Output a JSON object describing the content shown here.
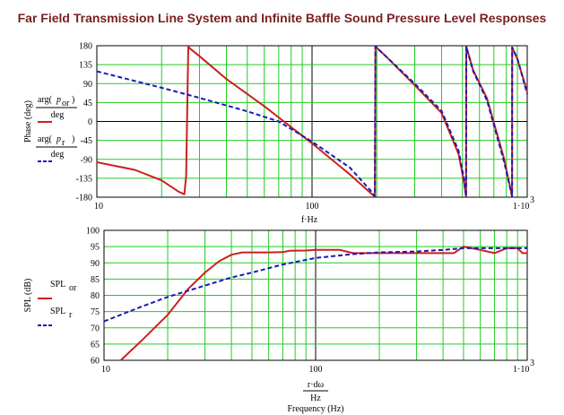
{
  "title": "Far Field Transmission Line System and Infinite Baffle Sound Pressure Level Responses",
  "colors": {
    "solid": "#cc1f1f",
    "dashed": "#1a1ab8",
    "grid": "#22cc22",
    "frame": "#000000",
    "title": "#7a1f1f"
  },
  "chart_data": [
    {
      "id": "phase",
      "type": "line",
      "x_scale": "log",
      "xlim": [
        10,
        1000
      ],
      "ylim": [
        -180,
        180
      ],
      "ylabel": "Phase (deg)",
      "xlabel": "f·Hz",
      "x_tick_labels": [
        "10",
        "100",
        "1·10"
      ],
      "x_tick_exponent": "3",
      "y_ticks": [
        180,
        135,
        90,
        45,
        0,
        -45,
        -90,
        -135,
        -180
      ],
      "legend": [
        {
          "style": "solid",
          "expr": "arg(p_or)",
          "sub": "or",
          "den": "deg"
        },
        {
          "style": "dashed",
          "expr": "arg(p_r)",
          "sub": "r",
          "den": "deg"
        }
      ],
      "series": [
        {
          "style": "solid",
          "points": [
            [
              10,
              -97
            ],
            [
              15,
              -115
            ],
            [
              20,
              -140
            ],
            [
              24,
              -167
            ],
            [
              25.5,
              -173
            ],
            [
              26,
              -130
            ],
            [
              26.6,
              178
            ],
            [
              27,
              174
            ],
            [
              30,
              155
            ],
            [
              40,
              101
            ],
            [
              60,
              36
            ],
            [
              100,
              -52
            ],
            [
              150,
              -126
            ],
            [
              190,
              -173
            ],
            [
              196,
              -179
            ],
            [
              197,
              178
            ],
            [
              220,
              155
            ],
            [
              300,
              86
            ],
            [
              400,
              20
            ],
            [
              480,
              -78
            ],
            [
              510,
              -148
            ],
            [
              520,
              -180
            ],
            [
              521,
              178
            ],
            [
              560,
              122
            ],
            [
              650,
              55
            ],
            [
              780,
              -88
            ],
            [
              850,
              -178
            ],
            [
              851,
              176
            ],
            [
              900,
              148
            ],
            [
              1000,
              70
            ]
          ]
        },
        {
          "style": "dashed",
          "points": [
            [
              10,
              119
            ],
            [
              20,
              80
            ],
            [
              30,
              56
            ],
            [
              50,
              24
            ],
            [
              70,
              0
            ],
            [
              100,
              -48
            ],
            [
              150,
              -110
            ],
            [
              190,
              -168
            ],
            [
              196,
              -178
            ],
            [
              197,
              178
            ],
            [
              220,
              155
            ],
            [
              300,
              90
            ],
            [
              400,
              25
            ],
            [
              480,
              -70
            ],
            [
              510,
              -140
            ],
            [
              520,
              -178
            ],
            [
              521,
              178
            ],
            [
              560,
              120
            ],
            [
              650,
              50
            ],
            [
              780,
              -95
            ],
            [
              850,
              -178
            ],
            [
              851,
              176
            ],
            [
              900,
              150
            ],
            [
              1000,
              65
            ]
          ]
        }
      ]
    },
    {
      "id": "spl",
      "type": "line",
      "x_scale": "log",
      "xlim": [
        10,
        1000
      ],
      "ylim": [
        60,
        100
      ],
      "ylabel": "SPL (dB)",
      "xlabel": "Frequency (Hz)",
      "xlabel_expr": "r·dω",
      "xlabel_den": "Hz",
      "x_tick_labels": [
        "10",
        "100",
        "1·10"
      ],
      "x_tick_exponent": "3",
      "y_ticks": [
        100,
        95,
        90,
        85,
        80,
        75,
        70,
        65,
        60
      ],
      "legend": [
        {
          "style": "solid",
          "expr": "SPL",
          "sub": "or"
        },
        {
          "style": "dashed",
          "expr": "SPL",
          "sub": "r"
        }
      ],
      "series": [
        {
          "style": "solid",
          "points": [
            [
              12,
              60
            ],
            [
              15,
              66
            ],
            [
              20,
              74
            ],
            [
              25,
              82
            ],
            [
              30,
              87
            ],
            [
              35,
              90.5
            ],
            [
              40,
              92.5
            ],
            [
              45,
              93.2
            ],
            [
              60,
              93.2
            ],
            [
              70,
              93.3
            ],
            [
              75,
              93.7
            ],
            [
              90,
              93.8
            ],
            [
              100,
              94
            ],
            [
              110,
              94
            ],
            [
              130,
              94
            ],
            [
              150,
              93
            ],
            [
              200,
              93
            ],
            [
              250,
              93
            ],
            [
              300,
              93
            ],
            [
              400,
              93
            ],
            [
              450,
              93
            ],
            [
              500,
              95
            ],
            [
              600,
              94
            ],
            [
              700,
              93
            ],
            [
              800,
              94.5
            ],
            [
              900,
              94.5
            ],
            [
              950,
              93
            ],
            [
              1000,
              93
            ]
          ]
        },
        {
          "style": "dashed",
          "points": [
            [
              10,
              72
            ],
            [
              15,
              76.5
            ],
            [
              20,
              79.5
            ],
            [
              30,
              83
            ],
            [
              40,
              85.5
            ],
            [
              50,
              87
            ],
            [
              70,
              89.5
            ],
            [
              100,
              91.5
            ],
            [
              150,
              92.7
            ],
            [
              200,
              93.2
            ],
            [
              300,
              93.5
            ],
            [
              400,
              94
            ],
            [
              500,
              94.5
            ],
            [
              600,
              94.5
            ],
            [
              700,
              94.5
            ],
            [
              800,
              94.5
            ],
            [
              900,
              94.5
            ],
            [
              1000,
              94.5
            ]
          ]
        }
      ]
    }
  ]
}
